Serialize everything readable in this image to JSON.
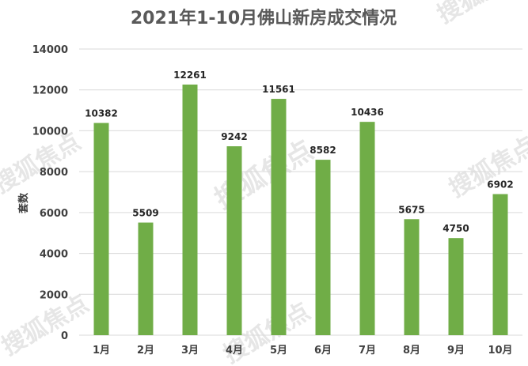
{
  "watermark": "搜狐焦点",
  "chart_data": {
    "type": "bar",
    "title": "2021年1-10月佛山新房成交情况",
    "ylabel": "套数",
    "xlabel": "",
    "categories": [
      "1月",
      "2月",
      "3月",
      "4月",
      "5月",
      "6月",
      "7月",
      "8月",
      "9月",
      "10月"
    ],
    "values": [
      10382,
      5509,
      12261,
      9242,
      11561,
      8582,
      10436,
      5675,
      4750,
      6902
    ],
    "ylim": [
      0,
      14000
    ],
    "yticks": [
      0,
      2000,
      4000,
      6000,
      8000,
      10000,
      12000,
      14000
    ],
    "grid": true,
    "legend": "none",
    "bar_color": "#70ad47",
    "grid_color": "#d9d9d9"
  }
}
